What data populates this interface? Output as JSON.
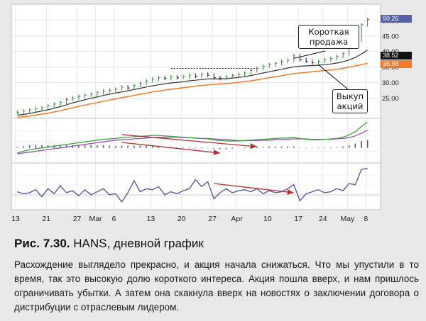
{
  "caption": {
    "fig_num": "Рис. 7.30.",
    "fig_title": "HANS, дневной график",
    "body": "Расхождение выглядело прекрасно, и акция начала снижаться. Что мы упустили в то время, так это высокую долю короткого интереса. Акция пошла вверх, и нам пришлось ограничивать убытки. А затем она скакнула вверх на новостях о заключении договора о дистрибуции с отраслевым лидером."
  },
  "annotations": {
    "short_sale": "Короткая продажа",
    "buy_back": "Выкуп акций"
  },
  "price_tags": [
    {
      "label": "50.26",
      "bg": "#5560a8",
      "fg": "#ffffff"
    },
    {
      "label": "38.52",
      "bg": "#111111",
      "fg": "#ffffff"
    },
    {
      "label": "35.98",
      "bg": "#f07a2a",
      "fg": "#ffffff"
    }
  ],
  "chart_data": {
    "type": "line",
    "x_tick_labels": [
      "13",
      "21",
      "27",
      "Mar",
      "6",
      "13",
      "20",
      "27",
      "Apr",
      "10",
      "17",
      "24",
      "May",
      "8"
    ],
    "y_tick_labels": [
      "50.00",
      "45.00",
      "40.00",
      "35.00",
      "30.00",
      "25.00"
    ],
    "price_panel": {
      "ylim": [
        19,
        52
      ],
      "close": [
        20.5,
        20.9,
        21.2,
        21.6,
        21.9,
        22.6,
        23.1,
        23.7,
        24.6,
        25.1,
        25.6,
        26.0,
        26.3,
        26.8,
        27.3,
        27.6,
        27.9,
        28.6,
        28.3,
        29.1,
        29.8,
        30.6,
        31.2,
        31.6,
        31.4,
        31.8,
        31.6,
        31.9,
        32.4,
        32.1,
        32.7,
        32.4,
        31.6,
        31.4,
        31.9,
        32.3,
        32.6,
        33.1,
        33.9,
        34.6,
        35.3,
        35.8,
        36.2,
        36.8,
        37.2,
        38.6,
        37.4,
        36.9,
        36.4,
        36.8,
        37.4,
        37.8,
        38.4,
        39.3,
        41.4,
        43.6,
        48.6,
        50.3
      ],
      "ema_fast": [
        19.6,
        19.8,
        20.1,
        20.5,
        20.9,
        21.3,
        21.8,
        22.3,
        22.9,
        23.5,
        24.0,
        24.5,
        25.0,
        25.4,
        25.9,
        26.3,
        26.7,
        27.0,
        27.4,
        27.8,
        28.2,
        28.6,
        29.0,
        29.3,
        29.6,
        29.9,
        30.1,
        30.3,
        30.6,
        30.8,
        31.0,
        31.2,
        31.2,
        31.2,
        31.3,
        31.5,
        31.7,
        31.9,
        32.3,
        32.7,
        33.1,
        33.5,
        33.9,
        34.3,
        34.7,
        35.1,
        35.3,
        35.4,
        35.5,
        35.6,
        35.8,
        36.0,
        36.3,
        36.7,
        37.3,
        38.1,
        39.2,
        40.5
      ],
      "ema_slow": [
        18.9,
        19.1,
        19.3,
        19.6,
        19.9,
        20.2,
        20.6,
        21.0,
        21.5,
        21.9,
        22.4,
        22.8,
        23.2,
        23.6,
        24.0,
        24.4,
        24.8,
        25.2,
        25.5,
        25.9,
        26.3,
        26.6,
        27.0,
        27.3,
        27.6,
        27.9,
        28.1,
        28.4,
        28.6,
        28.9,
        29.1,
        29.3,
        29.4,
        29.6,
        29.7,
        29.9,
        30.1,
        30.3,
        30.6,
        30.9,
        31.2,
        31.6,
        31.9,
        32.2,
        32.6,
        32.9,
        33.1,
        33.3,
        33.5,
        33.7,
        33.9,
        34.1,
        34.3,
        34.6,
        35.0,
        35.4,
        35.8,
        36.2
      ],
      "resistance_level": 34.6
    },
    "macd_panel": {
      "ylim": [
        -1.6,
        3.2
      ],
      "macd": [
        -0.6,
        -0.4,
        -0.2,
        -0.1,
        0.0,
        0.1,
        0.2,
        0.3,
        0.4,
        0.5,
        0.6,
        0.7,
        0.8,
        0.9,
        1.0,
        1.05,
        1.1,
        1.2,
        1.25,
        1.3,
        1.35,
        1.4,
        1.45,
        1.45,
        1.4,
        1.35,
        1.3,
        1.25,
        1.2,
        1.15,
        1.1,
        1.05,
        0.95,
        0.85,
        0.8,
        0.8,
        0.8,
        0.85,
        0.9,
        0.95,
        1.0,
        1.05,
        1.1,
        1.15,
        1.15,
        1.2,
        1.1,
        1.0,
        0.95,
        0.95,
        1.0,
        1.05,
        1.1,
        1.25,
        1.5,
        1.9,
        2.5,
        3.0
      ],
      "signal": [
        -0.7,
        -0.6,
        -0.5,
        -0.4,
        -0.3,
        -0.2,
        -0.1,
        0.0,
        0.1,
        0.2,
        0.3,
        0.4,
        0.5,
        0.6,
        0.7,
        0.8,
        0.9,
        0.95,
        1.0,
        1.05,
        1.1,
        1.15,
        1.2,
        1.25,
        1.25,
        1.25,
        1.25,
        1.2,
        1.2,
        1.15,
        1.1,
        1.1,
        1.05,
        1.0,
        0.95,
        0.9,
        0.85,
        0.85,
        0.85,
        0.85,
        0.9,
        0.9,
        0.95,
        1.0,
        1.0,
        1.05,
        1.05,
        1.05,
        1.0,
        1.0,
        1.0,
        1.0,
        1.05,
        1.1,
        1.2,
        1.4,
        1.7,
        2.1
      ],
      "histogram": [
        0.1,
        0.2,
        0.3,
        0.3,
        0.3,
        0.3,
        0.3,
        0.3,
        0.3,
        0.3,
        0.3,
        0.3,
        0.3,
        0.3,
        0.3,
        0.25,
        0.2,
        0.25,
        0.25,
        0.25,
        0.25,
        0.25,
        0.25,
        0.2,
        0.15,
        0.1,
        0.05,
        0.05,
        0.0,
        0.0,
        0.0,
        -0.05,
        -0.1,
        -0.15,
        -0.15,
        -0.1,
        -0.05,
        0.0,
        0.05,
        0.1,
        0.1,
        0.15,
        0.15,
        0.15,
        0.15,
        0.15,
        0.05,
        -0.05,
        -0.05,
        -0.05,
        0.0,
        0.05,
        0.05,
        0.15,
        0.3,
        0.5,
        0.8,
        0.9
      ]
    },
    "force_panel": {
      "ylim": [
        -1.2,
        3.0
      ],
      "values": [
        0.3,
        0.1,
        0.2,
        0.5,
        -0.2,
        0.6,
        0.1,
        0.9,
        0.2,
        0.4,
        -0.1,
        0.5,
        0.0,
        0.3,
        0.6,
        0.0,
        0.1,
        -0.7,
        0.2,
        1.4,
        0.3,
        0.6,
        0.5,
        0.8,
        0.0,
        0.3,
        0.1,
        0.4,
        0.6,
        1.5,
        0.8,
        1.3,
        -0.4,
        0.2,
        0.6,
        0.2,
        0.4,
        0.5,
        0.3,
        0.6,
        0.1,
        0.4,
        0.2,
        0.3,
        0.6,
        1.0,
        -0.6,
        0.1,
        0.3,
        0.5,
        0.2,
        0.3,
        0.6,
        0.4,
        1.1,
        1.0,
        2.5,
        2.6
      ]
    },
    "divergence_arrows": [
      {
        "panel": "macd",
        "from_index": 17,
        "to_index": 39
      },
      {
        "panel": "macd",
        "from_index": 17,
        "to_index": 33
      },
      {
        "panel": "force",
        "from_index": 32,
        "to_index": 45
      }
    ],
    "grid": true
  }
}
